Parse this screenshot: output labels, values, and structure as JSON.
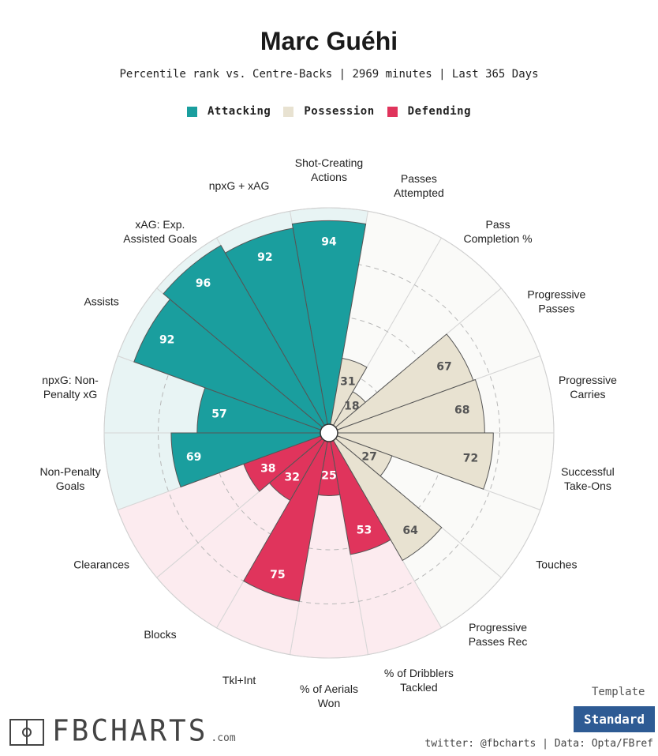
{
  "header": {
    "title": "Marc Guéhi",
    "subtitle": "Percentile rank vs. Centre-Backs | 2969 minutes | Last 365 Days"
  },
  "legend": [
    {
      "label": "Attacking",
      "color": "#1a9e9e"
    },
    {
      "label": "Possession",
      "color": "#e8e2d1"
    },
    {
      "label": "Defending",
      "color": "#e0345c"
    }
  ],
  "chart_data": {
    "type": "polar-bar",
    "title": "Marc Guéhi",
    "range": [
      0,
      100
    ],
    "categories": [
      {
        "label": "Shot-Creating\nActions",
        "value": 94,
        "group": "Attacking"
      },
      {
        "label": "Passes\nAttempted",
        "value": 31,
        "group": "Possession"
      },
      {
        "label": "Pass\nCompletion %",
        "value": 18,
        "group": "Possession"
      },
      {
        "label": "Progressive\nPasses",
        "value": 67,
        "group": "Possession"
      },
      {
        "label": "Progressive\nCarries",
        "value": 68,
        "group": "Possession"
      },
      {
        "label": "Successful\nTake-Ons",
        "value": 72,
        "group": "Possession"
      },
      {
        "label": "Touches",
        "value": 27,
        "group": "Possession"
      },
      {
        "label": "Progressive\nPasses Rec",
        "value": 64,
        "group": "Possession"
      },
      {
        "label": "% of Dribblers\nTackled",
        "value": 53,
        "group": "Defending"
      },
      {
        "label": "% of Aerials\nWon",
        "value": 25,
        "group": "Defending"
      },
      {
        "label": "Tkl+Int",
        "value": 75,
        "group": "Defending"
      },
      {
        "label": "Blocks",
        "value": 32,
        "group": "Defending"
      },
      {
        "label": "Clearances",
        "value": 38,
        "group": "Defending"
      },
      {
        "label": "Non-Penalty\nGoals",
        "value": 69,
        "group": "Attacking"
      },
      {
        "label": "npxG: Non-\nPenalty xG",
        "value": 57,
        "group": "Attacking"
      },
      {
        "label": "Assists",
        "value": 92,
        "group": "Attacking"
      },
      {
        "label": "xAG: Exp.\nAssisted Goals",
        "value": 96,
        "group": "Attacking"
      },
      {
        "label": "npxG + xAG",
        "value": 92,
        "group": "Attacking"
      }
    ],
    "group_colors": {
      "Attacking": {
        "fill": "#1a9e9e",
        "bg": "#e8f4f4",
        "text": "#ffffff"
      },
      "Possession": {
        "fill": "#e8e2d1",
        "bg": "#fafaf8",
        "text": "#555555"
      },
      "Defending": {
        "fill": "#e0345c",
        "bg": "#fcebef",
        "text": "#ffffff"
      }
    }
  },
  "footer": {
    "template_label": "Template",
    "template_value": "Standard",
    "credit": "twitter: @fbcharts | Data: Opta/FBref",
    "logo_text": "FBCHARTS",
    "logo_suffix": ".com"
  }
}
